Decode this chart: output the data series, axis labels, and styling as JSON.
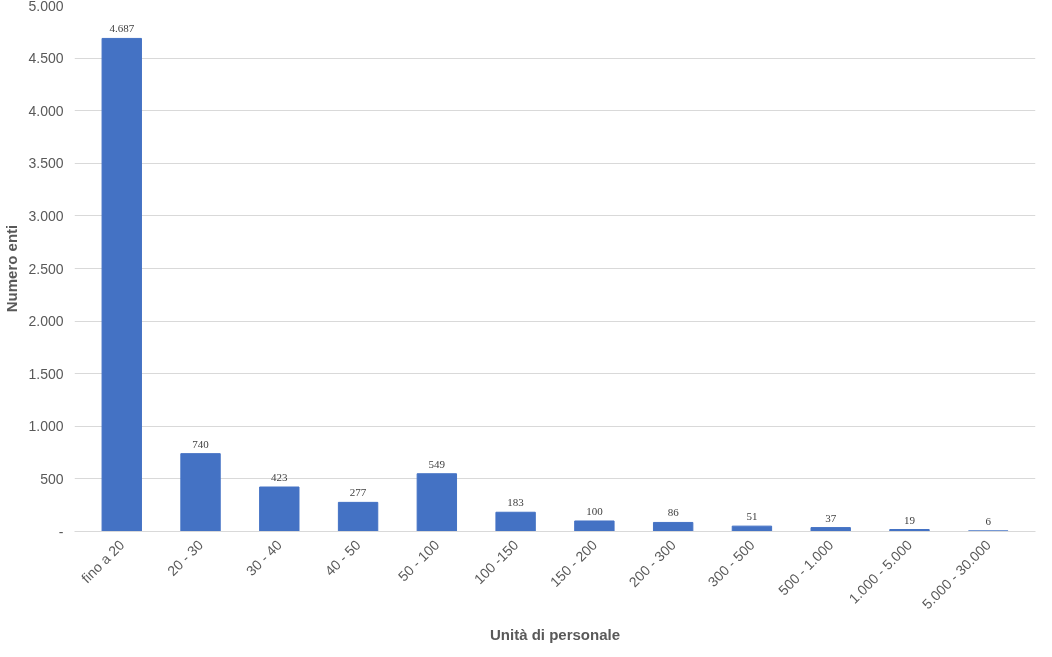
{
  "chart_data": {
    "type": "bar",
    "xlabel": "Unità di personale",
    "ylabel": "Numero enti",
    "categories": [
      "fino a 20",
      "20 - 30",
      "30 - 40",
      "40 - 50",
      "50 - 100",
      "100 -150",
      "150 - 200",
      "200 - 300",
      "300 - 500",
      "500 - 1.000",
      "1.000 - 5.000",
      "5.000 - 30.000"
    ],
    "values": [
      4687,
      740,
      423,
      277,
      549,
      183,
      100,
      86,
      51,
      37,
      19,
      6
    ],
    "value_labels": [
      "4.687",
      "740",
      "423",
      "277",
      "549",
      "183",
      "100",
      "86",
      "51",
      "37",
      "19",
      "6"
    ],
    "color": "#4472c4",
    "ylim": [
      0,
      5000
    ],
    "yticks": [
      {
        "value": 0,
        "label": "-"
      },
      500,
      {
        "value": 1000,
        "label": "1.000"
      },
      {
        "value": 1500,
        "label": "1.500"
      },
      {
        "value": 2000,
        "label": "2.000"
      },
      {
        "value": 2500,
        "label": "2.500"
      },
      {
        "value": 3000,
        "label": "3.000"
      },
      {
        "value": 3500,
        "label": "3.500"
      },
      {
        "value": 4000,
        "label": "4.000"
      },
      {
        "value": 4500,
        "label": "4.500"
      },
      {
        "value": 5000,
        "label": "5.000"
      }
    ],
    "grid": "y"
  }
}
